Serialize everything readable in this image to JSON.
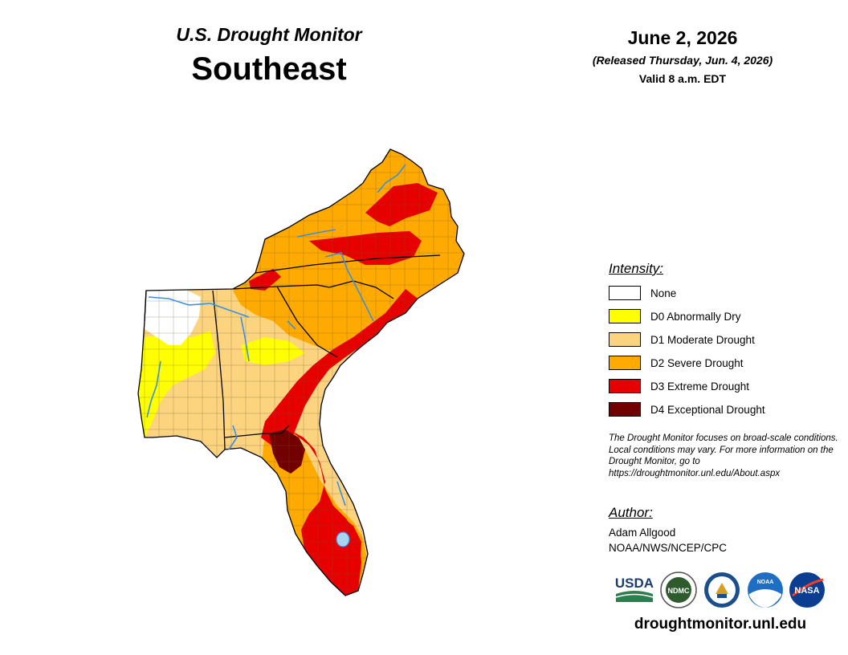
{
  "header": {
    "subtitle": "U.S. Drought Monitor",
    "region": "Southeast",
    "date": "June 2, 2026",
    "released": "(Released Thursday, Jun. 4, 2026)",
    "valid": "Valid 8 a.m. EDT"
  },
  "legend": {
    "title": "Intensity:",
    "items": [
      {
        "label": "None",
        "color": "#ffffff"
      },
      {
        "label": "D0 Abnormally Dry",
        "color": "#ffff00"
      },
      {
        "label": "D1 Moderate Drought",
        "color": "#fcd37f"
      },
      {
        "label": "D2 Severe Drought",
        "color": "#ffaa00"
      },
      {
        "label": "D3 Extreme Drought",
        "color": "#e60000"
      },
      {
        "label": "D4 Exceptional Drought",
        "color": "#730000"
      }
    ]
  },
  "disclaimer": "The Drought Monitor focuses on broad-scale conditions. Local conditions may vary. For more information on the Drought Monitor, go to https://droughtmonitor.unl.edu/About.aspx",
  "author": {
    "title": "Author:",
    "name": "Adam Allgood",
    "org": "NOAA/NWS/NCEP/CPC"
  },
  "logos": [
    {
      "name": "usda-logo",
      "text": "USDA"
    },
    {
      "name": "ndmc-logo",
      "text": "NDMC"
    },
    {
      "name": "commerce-seal",
      "text": ""
    },
    {
      "name": "noaa-logo",
      "text": "NOAA"
    },
    {
      "name": "nasa-logo",
      "text": "NASA"
    }
  ],
  "website": "droughtmonitor.unl.edu"
}
